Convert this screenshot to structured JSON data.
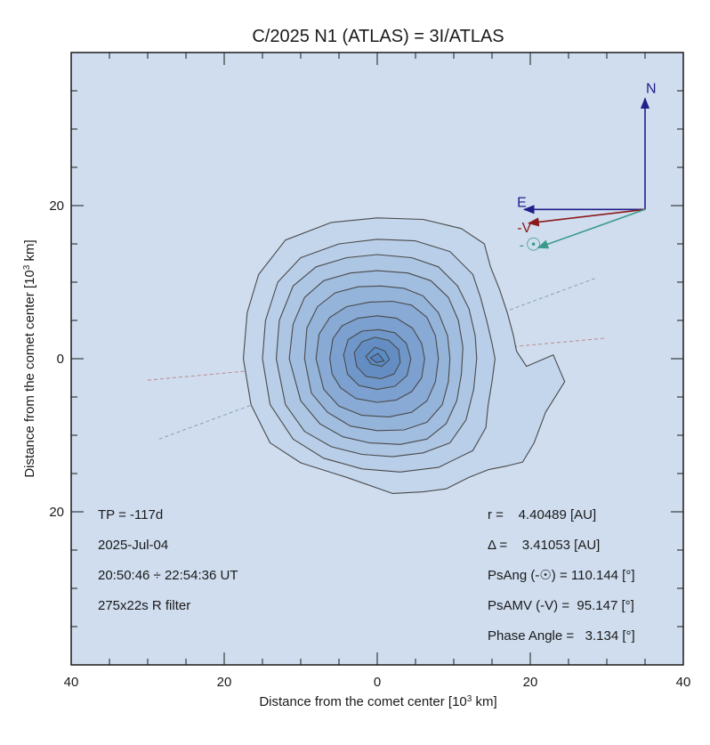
{
  "chart_data": {
    "type": "contour",
    "title": "C/2025 N1 (ATLAS) = 3I/ATLAS",
    "xlabel": "Distance from the comet center [10",
    "xlabel_sup": "3",
    "xlabel_tail": " km]",
    "ylabel": "Distance from the comet center [10",
    "ylabel_sup": "3",
    "ylabel_tail": " km]",
    "xlim": [
      -40,
      40
    ],
    "ylim": [
      -40,
      40
    ],
    "x_ticks": [
      {
        "value": -40,
        "label": "40"
      },
      {
        "value": -20,
        "label": "20"
      },
      {
        "value": 0,
        "label": "0"
      },
      {
        "value": 20,
        "label": "20"
      },
      {
        "value": 40,
        "label": "40"
      }
    ],
    "y_ticks": [
      {
        "value": 20,
        "label": "20"
      },
      {
        "value": 0,
        "label": "0"
      },
      {
        "value": -20,
        "label": "20"
      }
    ],
    "colors": {
      "background": "#cfddef",
      "contour_line": "#4a4a4a",
      "north_arrow": "#1f1f8a",
      "east_arrow": "#1f1f8a",
      "velocity_arrow": "#8b1a1a",
      "sun_arrow": "#3a9a8a",
      "fill_lightest": "#c4d6ec",
      "fill_darkest": "#5a8cc6"
    },
    "contours": [
      {
        "level": 1,
        "fill": "#c4d6ec",
        "points": [
          [
            -17.5,
            0
          ],
          [
            -17,
            6
          ],
          [
            -15.5,
            11
          ],
          [
            -12,
            15.5
          ],
          [
            -6,
            17.8
          ],
          [
            0,
            18.4
          ],
          [
            6,
            18.2
          ],
          [
            11,
            17
          ],
          [
            14,
            15
          ],
          [
            14.8,
            12
          ],
          [
            16,
            9
          ],
          [
            17,
            6
          ],
          [
            17.8,
            3
          ],
          [
            18.2,
            1
          ],
          [
            19.5,
            -1
          ],
          [
            23,
            0.5
          ],
          [
            24.5,
            -3
          ],
          [
            22,
            -7
          ],
          [
            20.5,
            -11
          ],
          [
            19,
            -13.5
          ],
          [
            17,
            -14
          ],
          [
            14.5,
            -14.5
          ],
          [
            12,
            -15.5
          ],
          [
            9,
            -17
          ],
          [
            6,
            -17.4
          ],
          [
            2,
            -17.6
          ],
          [
            -4,
            -15.5
          ],
          [
            -10,
            -13.6
          ],
          [
            -14,
            -11
          ],
          [
            -16.5,
            -6
          ]
        ]
      },
      {
        "level": 2,
        "fill": "#b9cee8",
        "points": [
          [
            -15,
            0
          ],
          [
            -14.6,
            5
          ],
          [
            -13,
            10
          ],
          [
            -10,
            13.2
          ],
          [
            -5,
            15
          ],
          [
            0,
            15.6
          ],
          [
            5,
            15.4
          ],
          [
            9.5,
            14
          ],
          [
            12.5,
            11
          ],
          [
            13.5,
            8
          ],
          [
            14.3,
            5
          ],
          [
            15,
            2
          ],
          [
            15.4,
            0
          ],
          [
            15,
            -3
          ],
          [
            14.5,
            -6
          ],
          [
            14.2,
            -9
          ],
          [
            12.5,
            -12
          ],
          [
            8,
            -14.2
          ],
          [
            3,
            -14.8
          ],
          [
            -2,
            -14.4
          ],
          [
            -7,
            -13
          ],
          [
            -11,
            -10.5
          ],
          [
            -14,
            -6
          ]
        ]
      },
      {
        "level": 3,
        "fill": "#adc6e3",
        "points": [
          [
            -13.2,
            0
          ],
          [
            -12.8,
            5
          ],
          [
            -11,
            9.5
          ],
          [
            -8,
            12
          ],
          [
            -4,
            13.2
          ],
          [
            0,
            13.6
          ],
          [
            4.5,
            13.2
          ],
          [
            8,
            12
          ],
          [
            10.5,
            9.5
          ],
          [
            12,
            6.5
          ],
          [
            12.8,
            3
          ],
          [
            13,
            0
          ],
          [
            12.6,
            -4
          ],
          [
            11.6,
            -8
          ],
          [
            9.5,
            -11
          ],
          [
            6,
            -12.3
          ],
          [
            2,
            -12.8
          ],
          [
            -2,
            -12.5
          ],
          [
            -6,
            -11.5
          ],
          [
            -9.5,
            -9.5
          ],
          [
            -12,
            -6
          ]
        ]
      },
      {
        "level": 4,
        "fill": "#a1bddf",
        "points": [
          [
            -11.5,
            0
          ],
          [
            -11,
            4.5
          ],
          [
            -9.5,
            8
          ],
          [
            -7,
            10.2
          ],
          [
            -3.5,
            11.2
          ],
          [
            0,
            11.5
          ],
          [
            4,
            11.2
          ],
          [
            7,
            10.2
          ],
          [
            9.3,
            8
          ],
          [
            10.6,
            5
          ],
          [
            11.2,
            1.5
          ],
          [
            11,
            -2
          ],
          [
            10.4,
            -5.5
          ],
          [
            9,
            -8.5
          ],
          [
            6.5,
            -10.5
          ],
          [
            3,
            -11.2
          ],
          [
            -1,
            -11
          ],
          [
            -4.5,
            -10.2
          ],
          [
            -7.5,
            -8.5
          ],
          [
            -10,
            -5.5
          ]
        ]
      },
      {
        "level": 5,
        "fill": "#95b4da",
        "points": [
          [
            -9.5,
            0
          ],
          [
            -9.2,
            4
          ],
          [
            -7.8,
            6.8
          ],
          [
            -5.5,
            8.6
          ],
          [
            -2.5,
            9.4
          ],
          [
            0.5,
            9.5
          ],
          [
            3.5,
            9.2
          ],
          [
            6,
            8.2
          ],
          [
            8,
            6
          ],
          [
            9.2,
            3
          ],
          [
            9.5,
            0
          ],
          [
            9.3,
            -3
          ],
          [
            8.5,
            -6
          ],
          [
            6.5,
            -8.3
          ],
          [
            3.5,
            -9.3
          ],
          [
            0,
            -9.4
          ],
          [
            -3.5,
            -8.8
          ],
          [
            -6.5,
            -7
          ],
          [
            -8.6,
            -4.5
          ]
        ]
      },
      {
        "level": 6,
        "fill": "#88aad5",
        "points": [
          [
            -8,
            0
          ],
          [
            -7.6,
            3.2
          ],
          [
            -6.2,
            5.4
          ],
          [
            -4,
            6.8
          ],
          [
            -1,
            7.4
          ],
          [
            2,
            7.5
          ],
          [
            4.5,
            7
          ],
          [
            6.5,
            5.4
          ],
          [
            7.6,
            3
          ],
          [
            8,
            0
          ],
          [
            7.6,
            -3
          ],
          [
            6.5,
            -5.5
          ],
          [
            4.5,
            -7
          ],
          [
            1.5,
            -7.6
          ],
          [
            -2,
            -7.4
          ],
          [
            -5,
            -6.2
          ],
          [
            -7,
            -4
          ]
        ]
      },
      {
        "level": 7,
        "fill": "#7ca0cf",
        "points": [
          [
            -6.2,
            0
          ],
          [
            -5.8,
            2.6
          ],
          [
            -4.6,
            4.3
          ],
          [
            -2.5,
            5.3
          ],
          [
            0,
            5.6
          ],
          [
            2.5,
            5.3
          ],
          [
            4.6,
            4
          ],
          [
            5.8,
            2
          ],
          [
            6.2,
            0
          ],
          [
            5.8,
            -2.5
          ],
          [
            4.5,
            -4.3
          ],
          [
            2.5,
            -5.4
          ],
          [
            0,
            -5.7
          ],
          [
            -2.8,
            -5.2
          ],
          [
            -4.8,
            -3.8
          ],
          [
            -5.9,
            -2
          ]
        ]
      },
      {
        "level": 8,
        "fill": "#7097c9",
        "points": [
          [
            -4.4,
            0.5
          ],
          [
            -3.8,
            2.5
          ],
          [
            -2,
            3.6
          ],
          [
            0.2,
            3.8
          ],
          [
            2.3,
            3.4
          ],
          [
            3.8,
            2
          ],
          [
            4.4,
            0
          ],
          [
            3.9,
            -2.2
          ],
          [
            2.3,
            -3.6
          ],
          [
            0,
            -4
          ],
          [
            -2.4,
            -3.5
          ],
          [
            -3.9,
            -2
          ]
        ]
      },
      {
        "level": 9,
        "fill": "#648ec3",
        "points": [
          [
            -3,
            0.8
          ],
          [
            -2,
            2.2
          ],
          [
            -0.3,
            2.8
          ],
          [
            1.5,
            2.4
          ],
          [
            2.8,
            1.2
          ],
          [
            3,
            -0.5
          ],
          [
            2.2,
            -2
          ],
          [
            0.5,
            -2.6
          ],
          [
            -1.5,
            -2.3
          ],
          [
            -2.7,
            -1
          ]
        ]
      },
      {
        "level": 10,
        "fill": "#5a8cc6",
        "points": [
          [
            -1.5,
            0.3
          ],
          [
            -0.3,
            1.5
          ],
          [
            1,
            1
          ],
          [
            1.6,
            -0.1
          ],
          [
            0.6,
            -1
          ],
          [
            -0.8,
            -0.7
          ]
        ]
      },
      {
        "level": 11,
        "fill": "#5585c0",
        "points": [
          [
            -0.9,
            0.1
          ],
          [
            0.1,
            0.7
          ],
          [
            0.9,
            -0.3
          ],
          [
            -0.1,
            -0.5
          ]
        ]
      }
    ],
    "dashed_lines": [
      {
        "name": "velocity-direction-line",
        "color": "#c08a8a",
        "from": [
          -30,
          -2.8
        ],
        "to": [
          30,
          2.7
        ]
      },
      {
        "name": "sun-direction-line",
        "color": "#8aa0b8",
        "from": [
          -28.5,
          -10.5
        ],
        "to": [
          28.5,
          10.5
        ]
      }
    ],
    "compass": {
      "origin": [
        35,
        19.5
      ],
      "north": {
        "label": "N",
        "to": [
          35,
          34
        ]
      },
      "east": {
        "label": "E",
        "to": [
          19.2,
          19.5
        ]
      },
      "velocity": {
        "label": "-V",
        "to": [
          19.8,
          17.7
        ]
      },
      "sun": {
        "label": "-",
        "symbol": "☉",
        "to": [
          21,
          14.5
        ]
      }
    },
    "annotations_left": [
      "TP = -117d",
      "2025-Jul-04",
      "20:50:46 ÷ 22:54:36 UT",
      "275x22s R filter"
    ],
    "annotations_right": [
      "r =    4.40489 [AU]",
      "Δ =    3.41053 [AU]",
      "PsAng (-☉) = 110.144 [°]",
      "PsAMV (-V) =  95.147 [°]",
      "Phase Angle =   3.134 [°]"
    ]
  }
}
